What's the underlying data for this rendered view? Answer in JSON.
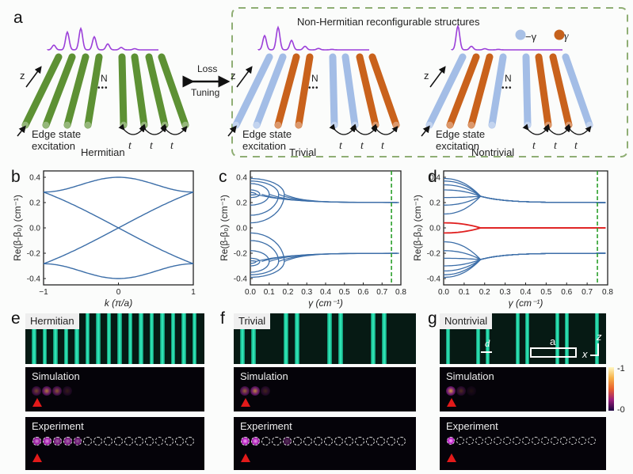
{
  "panel_labels": {
    "a": "a",
    "b": "b",
    "c": "c",
    "d": "d",
    "e": "e",
    "f": "f",
    "g": "g"
  },
  "panel_a": {
    "box_title": "Non-Hermitian reconfigurable structures",
    "arrow_top": "Loss",
    "arrow_bottom": "Tuning",
    "legend": [
      {
        "label": "−γ",
        "color": "#a9c1e6"
      },
      {
        "label": "γ",
        "color": "#c5611c"
      }
    ],
    "z_label": "z",
    "N_label": "N",
    "dots": "•••",
    "coupling_label": "t",
    "edge_text_1": "Edge state",
    "edge_text_2": "excitation",
    "structures": [
      {
        "name": "Hermitian",
        "rod_colors": [
          "g",
          "g",
          "g",
          "g",
          "g",
          "g",
          "g",
          "g"
        ]
      },
      {
        "name": "Trivial",
        "rod_colors": [
          "b",
          "b",
          "o",
          "o",
          "b",
          "b",
          "o",
          "o"
        ]
      },
      {
        "name": "Nontrivial",
        "rod_colors": [
          "b",
          "o",
          "o",
          "b",
          "b",
          "o",
          "o",
          "b"
        ]
      }
    ],
    "colors": {
      "green": "#5d9134",
      "blue": "#a3bde6",
      "orange": "#c9621c",
      "profile": "#9b3fd9",
      "box": "#8fae74"
    }
  },
  "chart_data": [
    {
      "id": "b",
      "type": "line",
      "title": "",
      "xlabel": "k (π/a)",
      "ylabel": "Re(β-β₀) (cm⁻¹)",
      "xlim": [
        -1,
        1
      ],
      "ylim": [
        -0.45,
        0.45
      ],
      "xticks": [
        -1,
        0,
        1
      ],
      "xtick_labels": [
        "−1",
        "0",
        "1"
      ],
      "yticks": [
        0.4,
        0.2,
        0.0,
        -0.2,
        -0.4
      ],
      "ytick_labels": [
        "0.4",
        "0.2",
        "0.0",
        "-0.2",
        "-0.4"
      ],
      "series": [
        {
          "name": "band1",
          "x": [
            -1,
            -0.5,
            0,
            0.5,
            1
          ],
          "y": [
            0.283,
            0.37,
            0.4,
            0.37,
            0.283
          ]
        },
        {
          "name": "band2",
          "x": [
            -1,
            -0.5,
            0,
            0.5,
            1
          ],
          "y": [
            0.283,
            0.153,
            0.0,
            -0.153,
            -0.283
          ]
        },
        {
          "name": "band3",
          "x": [
            -1,
            -0.5,
            0,
            0.5,
            1
          ],
          "y": [
            -0.283,
            -0.153,
            0.0,
            0.153,
            0.283
          ]
        },
        {
          "name": "band4",
          "x": [
            -1,
            -0.5,
            0,
            0.5,
            1
          ],
          "y": [
            -0.283,
            -0.37,
            -0.4,
            -0.37,
            -0.283
          ]
        }
      ],
      "color": "#3c6ea8"
    },
    {
      "id": "c",
      "type": "line",
      "xlabel": "γ (cm⁻¹)",
      "ylabel": "Re(β-β₀) (cm⁻¹)",
      "xlim": [
        0,
        0.8
      ],
      "ylim": [
        -0.45,
        0.45
      ],
      "xticks": [
        0,
        0.1,
        0.2,
        0.3,
        0.4,
        0.5,
        0.6,
        0.7,
        0.8
      ],
      "xtick_labels": [
        "0.0",
        "0.1",
        "0.2",
        "0.3",
        "0.4",
        "0.5",
        "0.6",
        "0.7",
        "0.8"
      ],
      "yticks": [
        0.4,
        0.2,
        0.0,
        -0.2,
        -0.4
      ],
      "ytick_labels": [
        "0.4",
        "0.2",
        "0.0",
        "-0.2",
        "-0.4"
      ],
      "series": [
        {
          "name": "upper_arcs",
          "start_values": [
            0.39,
            0.37,
            0.35,
            0.3,
            0.28,
            0.26,
            0.24,
            0.18,
            0.1,
            0.04
          ],
          "ep_gamma": [
            0.18,
            0.15,
            0.1,
            0.05,
            0.03,
            0.03,
            0.05,
            0.1,
            0.15,
            0.18
          ]
        },
        {
          "name": "lower_arcs",
          "start_values": [
            -0.04,
            -0.1,
            -0.18,
            -0.24,
            -0.26,
            -0.28,
            -0.3,
            -0.35,
            -0.37,
            -0.39
          ],
          "ep_gamma": [
            0.18,
            0.15,
            0.1,
            0.05,
            0.03,
            0.03,
            0.05,
            0.1,
            0.15,
            0.18
          ]
        },
        {
          "name": "upper_converge",
          "value": 0.2
        },
        {
          "name": "lower_converge",
          "value": -0.2
        }
      ],
      "marker_line": {
        "x": 0.75,
        "style": "dashed",
        "color": "#2ca02c"
      },
      "color": "#3c6ea8"
    },
    {
      "id": "d",
      "type": "line",
      "xlabel": "γ (cm⁻¹)",
      "ylabel": "Re(β-β₀) (cm⁻¹)",
      "xlim": [
        0,
        0.8
      ],
      "ylim": [
        -0.45,
        0.45
      ],
      "xticks": [
        0,
        0.1,
        0.2,
        0.3,
        0.4,
        0.5,
        0.6,
        0.7,
        0.8
      ],
      "xtick_labels": [
        "0.0",
        "0.1",
        "0.2",
        "0.3",
        "0.4",
        "0.5",
        "0.6",
        "0.7",
        "0.8"
      ],
      "yticks": [
        0.4,
        0.2,
        0.0,
        -0.2,
        -0.4
      ],
      "ytick_labels": [
        "0.4",
        "0.2",
        "0.0",
        "-0.2",
        "-0.4"
      ],
      "series": [
        {
          "name": "upper_bulk",
          "start_values": [
            0.39,
            0.37,
            0.34,
            0.3,
            0.24,
            0.18,
            0.11
          ],
          "merge_gamma": 0.18,
          "converge": 0.2
        },
        {
          "name": "lower_bulk",
          "start_values": [
            -0.11,
            -0.18,
            -0.24,
            -0.3,
            -0.34,
            -0.37,
            -0.39
          ],
          "merge_gamma": 0.18,
          "converge": -0.2
        },
        {
          "name": "edge_states",
          "start_values": [
            0.04,
            -0.04
          ],
          "merge_gamma": 0.18,
          "converge": 0.0,
          "color": "#e02020"
        }
      ],
      "marker_line": {
        "x": 0.75,
        "style": "dashed",
        "color": "#2ca02c"
      },
      "color": "#3c6ea8"
    }
  ],
  "bottom_panels": [
    {
      "tag": "Hermitian",
      "sim_label": "Simulation",
      "exp_label": "Experiment",
      "waveguide_positions": [
        0,
        1,
        2,
        3,
        4,
        5,
        6,
        7,
        8,
        9,
        10,
        11,
        12,
        13,
        14,
        15
      ],
      "sim_intensity": [
        0.45,
        0.7,
        0.55,
        0.2
      ],
      "exp_intensity": [
        0.8,
        0.85,
        0.6,
        0.65,
        0.55,
        0,
        0,
        0,
        0,
        0,
        0,
        0,
        0,
        0,
        0,
        0
      ]
    },
    {
      "tag": "Trivial",
      "sim_label": "Simulation",
      "exp_label": "Experiment",
      "waveguide_positions": [
        0,
        1,
        4,
        5,
        8,
        9,
        12,
        13
      ],
      "sim_intensity": [
        0.6,
        0.75,
        0.25
      ],
      "exp_intensity": [
        0.95,
        0.9,
        0,
        0,
        0.3,
        0,
        0,
        0,
        0,
        0,
        0,
        0,
        0,
        0,
        0,
        0
      ]
    },
    {
      "tag": "Nontrivial",
      "sim_label": "Simulation",
      "exp_label": "Experiment",
      "waveguide_positions": [
        0,
        3,
        4,
        7,
        8,
        11,
        12,
        15
      ],
      "sim_intensity": [
        0.85,
        0.3,
        0.1
      ],
      "exp_intensity": [
        1.0,
        0,
        0,
        0,
        0,
        0,
        0,
        0,
        0,
        0,
        0,
        0,
        0,
        0,
        0,
        0
      ],
      "annotations": {
        "d": "d",
        "a": "a",
        "z": "z",
        "x": "x"
      },
      "colorbar": {
        "max": "1",
        "min": "0"
      }
    }
  ]
}
